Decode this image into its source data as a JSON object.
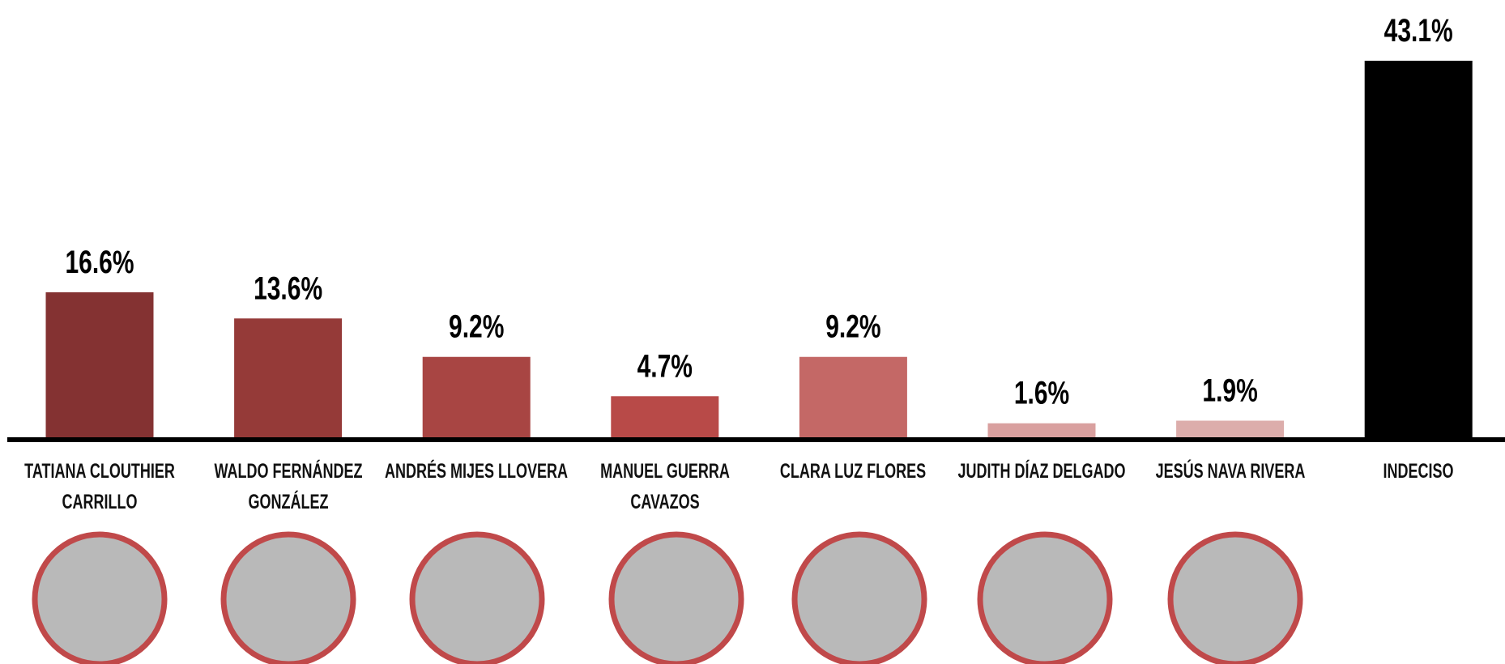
{
  "chart_data": {
    "type": "bar",
    "categories": [
      "TATIANA CLOUTHIER\nCARRILLO",
      "WALDO FERNÁNDEZ\nGONZÁLEZ",
      "ANDRÉS MIJES LLOVERA",
      "MANUEL GUERRA\nCAVAZOS",
      "CLARA LUZ FLORES",
      "JUDITH DÍAZ DELGADO",
      "JESÚS NAVA RIVERA",
      "INDECISO"
    ],
    "values": [
      16.6,
      13.6,
      9.2,
      4.7,
      9.2,
      1.6,
      1.9,
      43.1
    ],
    "value_labels": [
      "16.6%",
      "13.6%",
      "9.2%",
      "4.7%",
      "9.2%",
      "1.6%",
      "1.9%",
      "43.1%"
    ],
    "colors": [
      "#843232",
      "#953a38",
      "#a84543",
      "#b84a48",
      "#c46866",
      "#d9a09f",
      "#dcadab",
      "#000000"
    ]
  }
}
